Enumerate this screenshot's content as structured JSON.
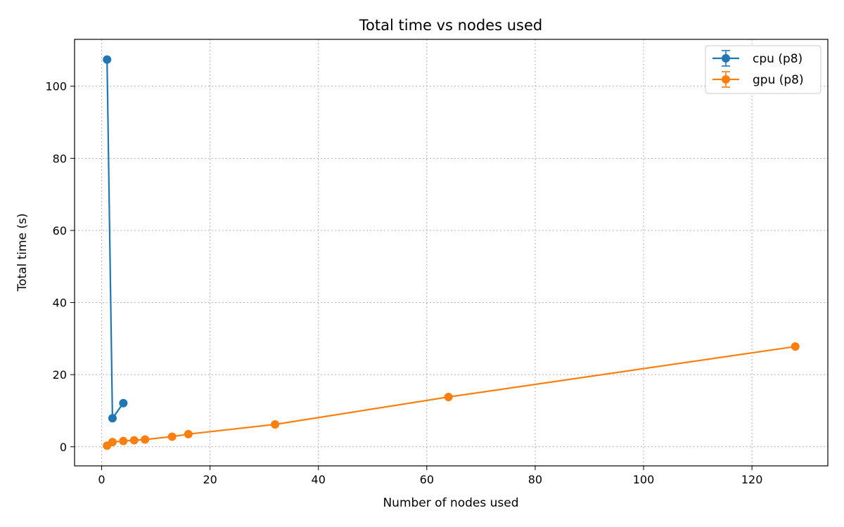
{
  "chart_data": {
    "type": "line",
    "title": "Total time vs nodes used",
    "xlabel": "Number of nodes used",
    "ylabel": "Total time (s)",
    "xlim": [
      -5,
      134
    ],
    "ylim": [
      -5.3,
      113
    ],
    "xticks": [
      0,
      20,
      40,
      60,
      80,
      100,
      120
    ],
    "yticks": [
      0,
      20,
      40,
      60,
      80,
      100
    ],
    "grid": true,
    "legend_position": "top-right",
    "series": [
      {
        "name": "cpu (p8)",
        "color": "#1f77b4",
        "marker": "circle",
        "error_bars": true,
        "x": [
          1,
          2,
          4
        ],
        "y": [
          107.4,
          7.9,
          12.1
        ]
      },
      {
        "name": "gpu (p8)",
        "color": "#ff7f0e",
        "marker": "circle",
        "error_bars": true,
        "x": [
          1,
          2,
          4,
          6,
          8,
          13,
          16,
          32,
          64,
          128
        ],
        "y": [
          0.3,
          1.3,
          1.6,
          1.8,
          2.0,
          2.8,
          3.5,
          6.2,
          13.8,
          27.8
        ]
      }
    ]
  }
}
